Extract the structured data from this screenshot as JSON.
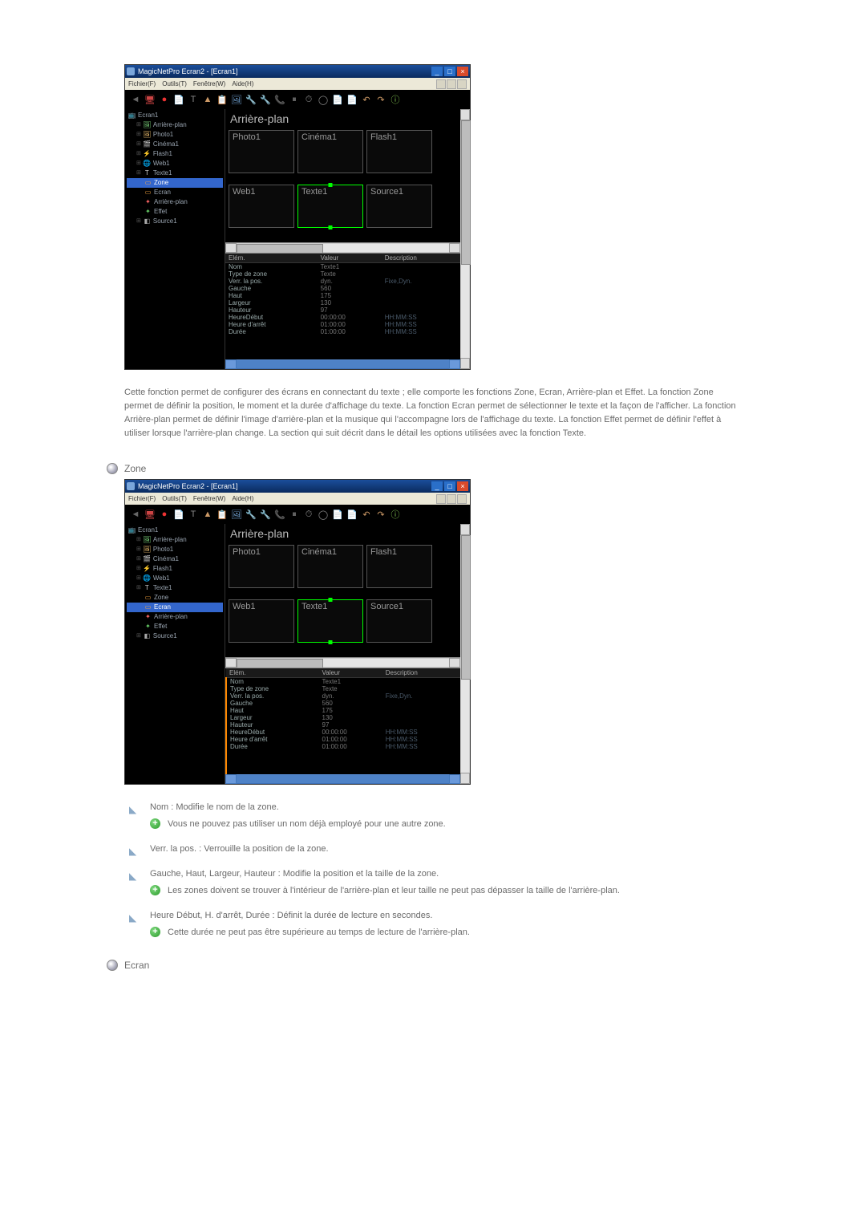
{
  "screenshots": {
    "titlebar": "MagicNetPro Ecran2 - [Ecran1]",
    "menubar": [
      "Fichier(F)",
      "Outils(T)",
      "Fenêtre(W)",
      "Aide(H)"
    ],
    "tree": [
      {
        "label": "Ecran1",
        "indent": 0,
        "icon": "📺",
        "color": "#8adfff"
      },
      {
        "label": "Arrière-plan",
        "indent": 1,
        "icon": "🖼",
        "color": "#7fd97f"
      },
      {
        "label": "Photo1",
        "indent": 1,
        "icon": "🖼",
        "color": "#e7b96b"
      },
      {
        "label": "Cinéma1",
        "indent": 1,
        "icon": "🎬",
        "color": "#d18bd1"
      },
      {
        "label": "Flash1",
        "indent": 1,
        "icon": "⚡",
        "color": "#ff5050"
      },
      {
        "label": "Web1",
        "indent": 1,
        "icon": "🌐",
        "color": "#6aa9ff"
      },
      {
        "label": "Texte1",
        "indent": 1,
        "icon": "T",
        "color": "#cccccc"
      },
      {
        "label": "Zone",
        "indent": 2,
        "icon": "▭",
        "color": "#ffaa44",
        "selected_a": true
      },
      {
        "label": "Ecran",
        "indent": 2,
        "icon": "▭",
        "color": "#ffaa44",
        "selected_b": true
      },
      {
        "label": "Arrière-plan",
        "indent": 2,
        "icon": "✦",
        "color": "#ff6666"
      },
      {
        "label": "Effet",
        "indent": 2,
        "icon": "✦",
        "color": "#66cc66"
      },
      {
        "label": "Source1",
        "indent": 1,
        "icon": "◧",
        "color": "#aaaaaa"
      }
    ],
    "bg_label": "Arrière-plan",
    "zones_top": [
      "Photo1",
      "Cinéma1",
      "Flash1"
    ],
    "zones_bottom": [
      "Web1",
      "Texte1",
      "Source1"
    ],
    "selected_zone": "Texte1",
    "props_headers": [
      "Elém.",
      "Valeur",
      "Description"
    ],
    "props_rows": [
      [
        "Nom",
        "Texte1",
        ""
      ],
      [
        "Type de zone",
        "Texte",
        ""
      ],
      [
        "Verr. la pos.",
        "dyn.",
        "Fixe,Dyn."
      ],
      [
        "Gauche",
        "560",
        ""
      ],
      [
        "Haut",
        "175",
        ""
      ],
      [
        "Largeur",
        "130",
        ""
      ],
      [
        "Hauteur",
        "97",
        ""
      ],
      [
        "HeureDébut",
        "00:00:00",
        "HH:MM:SS"
      ],
      [
        "Heure d'arrêt",
        "01:00:00",
        "HH:MM:SS"
      ],
      [
        "Durée",
        "01:00:00",
        "HH:MM:SS"
      ]
    ]
  },
  "paragraph": "Cette fonction permet de configurer des écrans en connectant du texte ; elle comporte les fonctions Zone, Ecran, Arrière-plan et Effet. La fonction Zone permet de définir la position, le moment et la durée d'affichage du texte. La fonction Ecran permet de sélectionner le texte et la façon de l'afficher. La fonction Arrière-plan permet de définir l'image d'arrière-plan et la musique qui l'accompagne lors de l'affichage du texte. La fonction Effet permet de définir l'effet à utiliser lorsque l'arrière-plan change. La section qui suit décrit dans le détail les options utilisées avec la fonction Texte.",
  "section_zone": "Zone",
  "list_items": [
    {
      "text": "Nom : Modifie le nom de la zone.",
      "sub": "Vous ne pouvez pas utiliser un nom déjà employé pour une autre zone."
    },
    {
      "text": "Verr. la pos. : Verrouille la position de la zone."
    },
    {
      "text": "Gauche, Haut, Largeur, Hauteur : Modifie la position et la taille de la zone.",
      "sub": "Les zones doivent se trouver à l'intérieur de l'arrière-plan et leur taille ne peut pas dépasser la taille de l'arrière-plan."
    },
    {
      "text": "Heure Début, H. d'arrêt, Durée : Définit la durée de lecture en secondes.",
      "sub": "Cette durée ne peut pas être supérieure au temps de lecture de l'arrière-plan."
    }
  ],
  "section_ecran": "Ecran",
  "toolbar_icons": [
    "◄",
    "🖥",
    "●",
    "📄",
    "T",
    "▲",
    "📋",
    "🖼",
    "🔧",
    "🔧",
    "📞",
    "⏸",
    "⏱",
    "◯",
    "📄",
    "📄",
    "↶",
    "↷",
    "ⓘ"
  ]
}
